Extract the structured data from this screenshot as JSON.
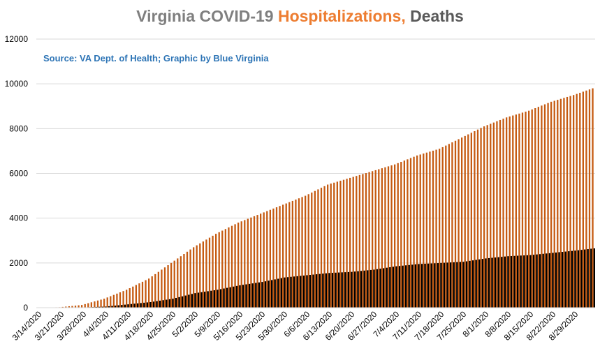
{
  "title": {
    "part1": "Virginia COVID-19 ",
    "part2": "Hospitalizations, ",
    "part3": "Deaths"
  },
  "source_note": "Source: VA Dept. of Health; Graphic by Blue Virginia",
  "colors": {
    "hospitalizations": "#c55a11",
    "deaths": "#000000",
    "grid": "#d9d9d9",
    "axis_text": "#000000"
  },
  "chart_data": {
    "type": "bar",
    "title": "Virginia COVID-19 Hospitalizations, Deaths",
    "start_date": "3/14/2020",
    "end_date": "9/4/2020",
    "x_tick_labels": [
      "3/14/2020",
      "3/21/2020",
      "3/28/2020",
      "4/4/2020",
      "4/11/2020",
      "4/18/2020",
      "4/25/2020",
      "5/2/2020",
      "5/9/2020",
      "5/16/2020",
      "5/23/2020",
      "5/30/2020",
      "6/6/2020",
      "6/13/2020",
      "6/20/2020",
      "6/27/2020",
      "7/4/2020",
      "7/11/2020",
      "7/18/2020",
      "7/25/2020",
      "8/1/2020",
      "8/8/2020",
      "8/15/2020",
      "8/22/2020",
      "8/29/2020"
    ],
    "y_ticks": [
      0,
      2000,
      4000,
      6000,
      8000,
      10000,
      12000
    ],
    "ylim": [
      0,
      12000
    ],
    "grid": true,
    "series": [
      {
        "name": "Hospitalizations",
        "x": [
          "3/14/2020",
          "3/21/2020",
          "3/28/2020",
          "4/4/2020",
          "4/11/2020",
          "4/18/2020",
          "4/25/2020",
          "5/2/2020",
          "5/9/2020",
          "5/16/2020",
          "5/23/2020",
          "5/30/2020",
          "6/6/2020",
          "6/13/2020",
          "6/20/2020",
          "6/27/2020",
          "7/4/2020",
          "7/11/2020",
          "7/18/2020",
          "7/25/2020",
          "8/1/2020",
          "8/8/2020",
          "8/15/2020",
          "8/22/2020",
          "8/29/2020",
          "9/4/2020"
        ],
        "values": [
          0,
          20,
          120,
          400,
          800,
          1300,
          2000,
          2700,
          3300,
          3800,
          4200,
          4600,
          5000,
          5500,
          5800,
          6100,
          6400,
          6800,
          7100,
          7600,
          8100,
          8500,
          8800,
          9200,
          9500,
          9800
        ]
      },
      {
        "name": "Deaths",
        "x": [
          "3/14/2020",
          "3/21/2020",
          "3/28/2020",
          "4/4/2020",
          "4/11/2020",
          "4/18/2020",
          "4/25/2020",
          "5/2/2020",
          "5/9/2020",
          "5/16/2020",
          "5/23/2020",
          "5/30/2020",
          "6/6/2020",
          "6/13/2020",
          "6/20/2020",
          "6/27/2020",
          "7/4/2020",
          "7/11/2020",
          "7/18/2020",
          "7/25/2020",
          "8/1/2020",
          "8/8/2020",
          "8/15/2020",
          "8/22/2020",
          "8/29/2020",
          "9/4/2020"
        ],
        "values": [
          0,
          2,
          10,
          50,
          150,
          250,
          400,
          650,
          800,
          1000,
          1150,
          1350,
          1450,
          1550,
          1600,
          1700,
          1850,
          1950,
          2000,
          2050,
          2200,
          2300,
          2350,
          2450,
          2550,
          2650
        ]
      }
    ]
  }
}
